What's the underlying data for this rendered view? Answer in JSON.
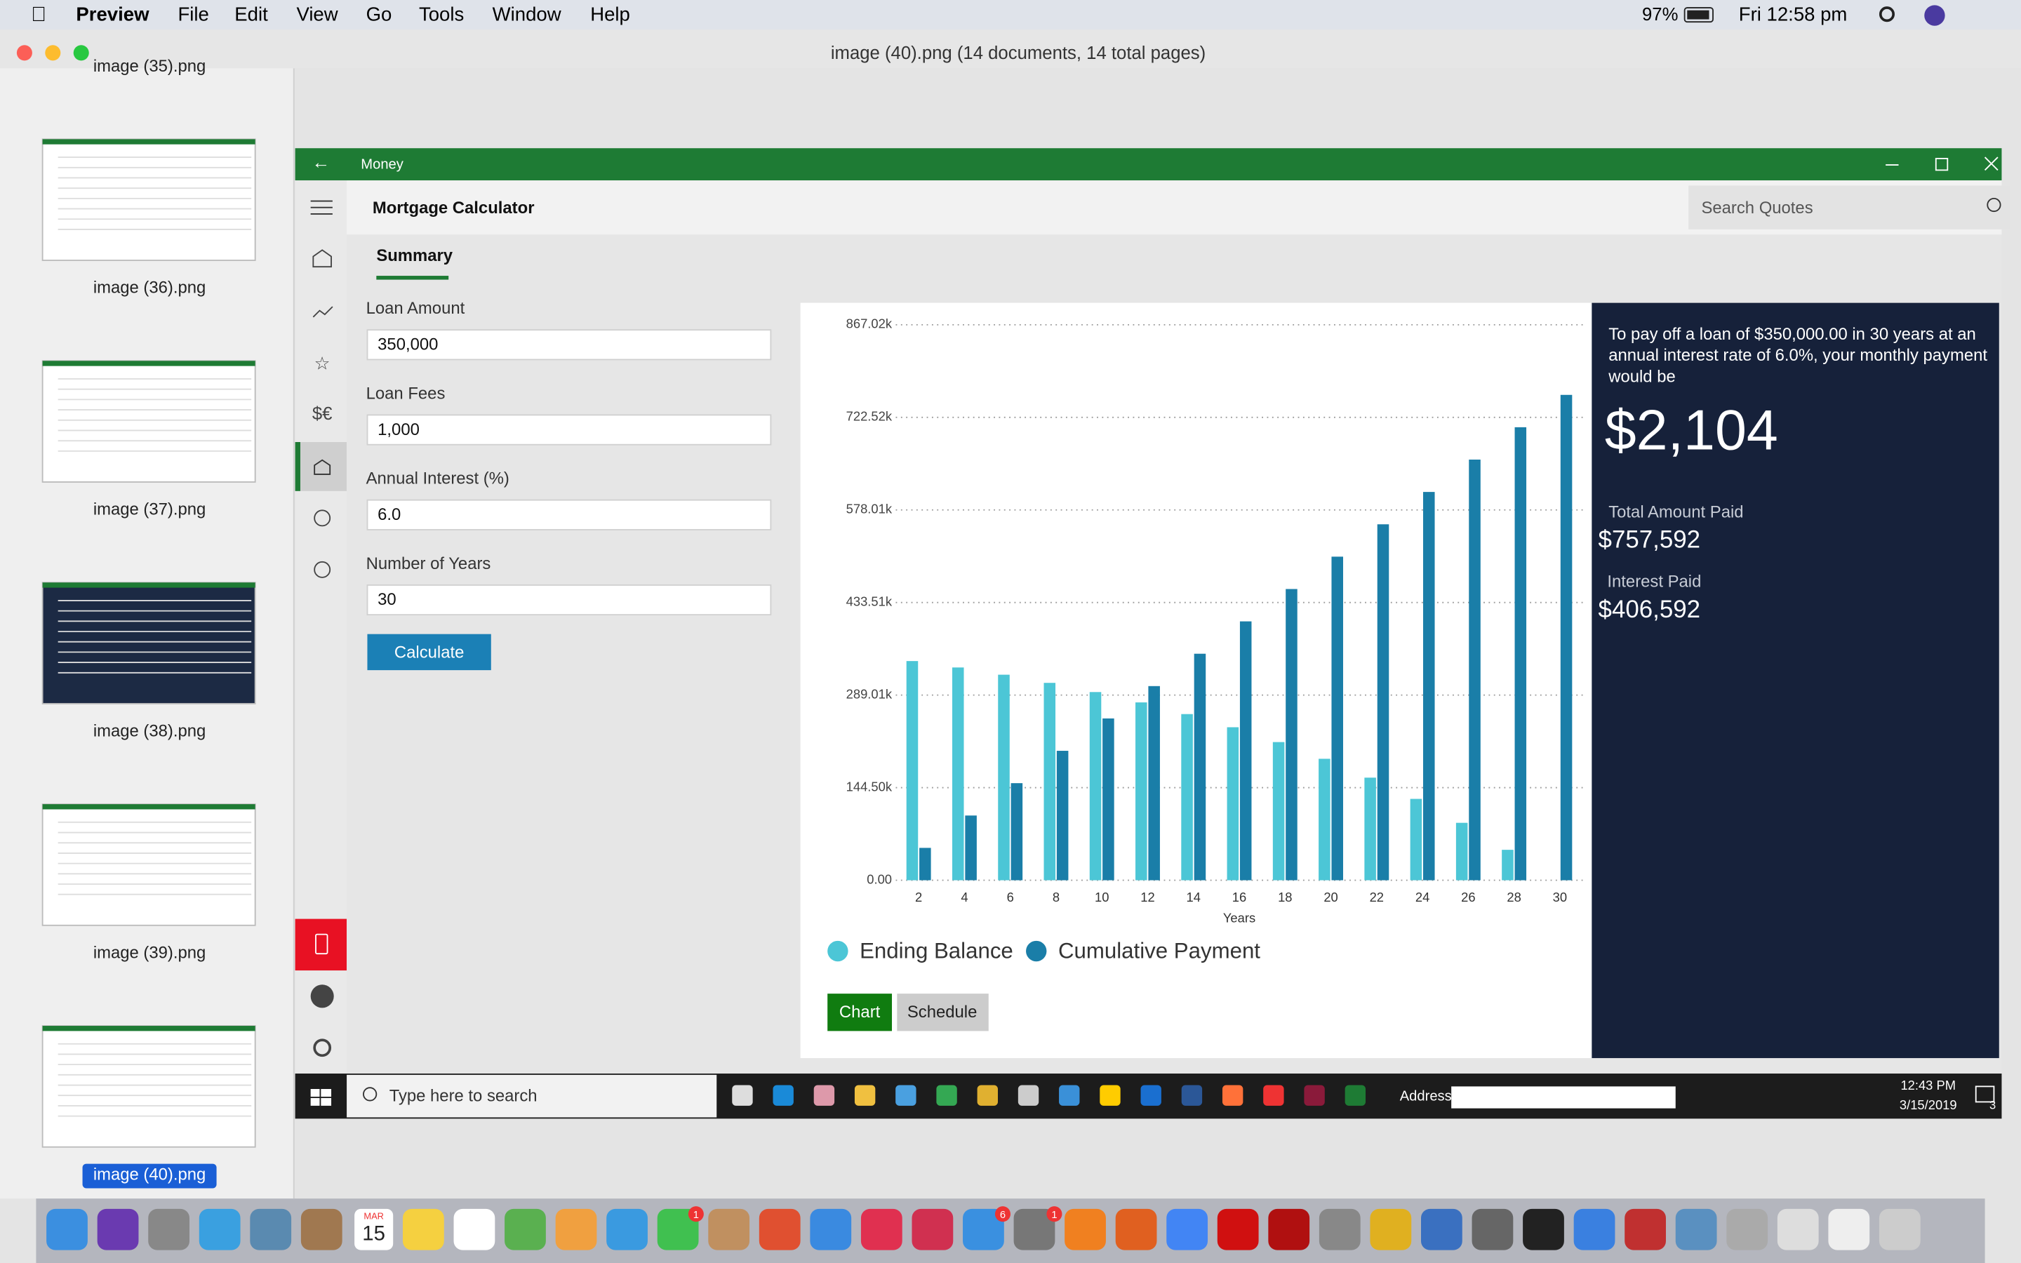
{
  "menubar": {
    "app": "Preview",
    "menus": [
      "File",
      "Edit",
      "View",
      "Go",
      "Tools",
      "Window",
      "Help"
    ],
    "battery": "97%",
    "clock": "Fri 12:58 pm"
  },
  "window_title": "image (40).png (14 documents, 14 total pages)",
  "thumbnails": [
    "image (35).png",
    "image (36).png",
    "image (37).png",
    "image (38).png",
    "image (39).png",
    "image (40).png"
  ],
  "app": {
    "name": "Money",
    "page_title": "Mortgage Calculator",
    "search_placeholder": "Search Quotes",
    "tab": "Summary",
    "form": [
      {
        "label": "Loan Amount",
        "value": "350,000"
      },
      {
        "label": "Loan Fees",
        "value": "1,000"
      },
      {
        "label": "Annual Interest (%)",
        "value": "6.0"
      },
      {
        "label": "Number of Years",
        "value": "30"
      }
    ],
    "button": "Calculate",
    "result": {
      "lines": [
        "To pay off a loan of $350,000.00 in 30 years at an",
        "annual interest rate of 6.0%, your monthly payment",
        "would be"
      ],
      "payment": "$2,104",
      "total_label": "Total Amount Paid",
      "total": "$757,592",
      "interest_label": "Interest Paid",
      "interest": "$406,592"
    },
    "view_buttons": [
      "Chart",
      "Schedule"
    ]
  },
  "chart_data": {
    "type": "bar",
    "x_label": "Years",
    "categories": [
      "2",
      "4",
      "6",
      "8",
      "10",
      "12",
      "14",
      "16",
      "18",
      "20",
      "22",
      "24",
      "26",
      "28",
      "30"
    ],
    "series": [
      {
        "name": "Ending Balance",
        "color": "#4cc6d6",
        "values": [
          342113,
          332095,
          320806,
          308078,
          293738,
          277569,
          259346,
          238801,
          215650,
          189556,
          160133,
          126978,
          89625,
          47484,
          0
        ]
      },
      {
        "name": "Cumulative Payment",
        "color": "#1a7ea8",
        "values": [
          50506,
          101012,
          151518,
          202024,
          252530,
          303036,
          353543,
          404049,
          454555,
          505061,
          555567,
          606073,
          656579,
          707085,
          757591
        ]
      }
    ],
    "ylim": [
      0,
      867020
    ],
    "yticks": [
      {
        "value": 0,
        "label": "0.00"
      },
      {
        "value": 144500,
        "label": "144.50k"
      },
      {
        "value": 289010,
        "label": "289.01k"
      },
      {
        "value": 433510,
        "label": "433.51k"
      },
      {
        "value": 578010,
        "label": "578.01k"
      },
      {
        "value": 722520,
        "label": "722.52k"
      },
      {
        "value": 867020,
        "label": "867.02k"
      }
    ],
    "grid": true
  },
  "taskbar": {
    "search": "Type here to search",
    "address_label": "Address",
    "time": "12:43 PM",
    "date": "3/15/2019",
    "notifications": "3"
  },
  "dock": {
    "calendar_month": "MAR",
    "calendar_day": "15",
    "badges": [
      "1",
      "6",
      "1"
    ]
  }
}
